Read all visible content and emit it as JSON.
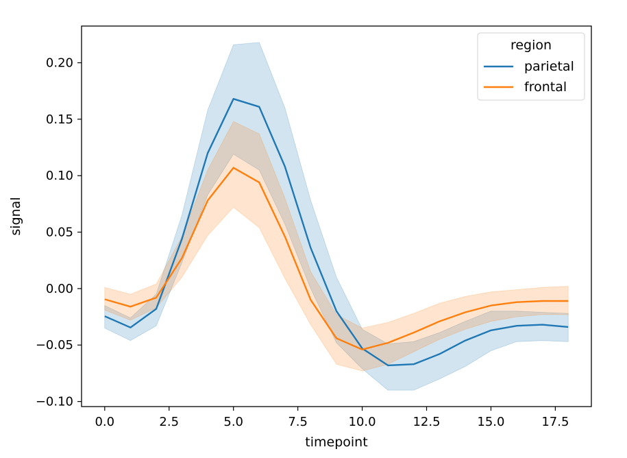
{
  "chart_data": {
    "type": "line",
    "title": "",
    "xlabel": "timepoint",
    "ylabel": "signal",
    "xlim": [
      -0.9,
      18.9
    ],
    "ylim": [
      -0.1045,
      0.2325
    ],
    "xticks": [
      0.0,
      2.5,
      5.0,
      7.5,
      10.0,
      12.5,
      15.0,
      17.5
    ],
    "xtick_labels": [
      "0.0",
      "2.5",
      "5.0",
      "7.5",
      "10.0",
      "12.5",
      "15.0",
      "17.5"
    ],
    "yticks": [
      -0.1,
      -0.05,
      0.0,
      0.05,
      0.1,
      0.15,
      0.2
    ],
    "ytick_labels": [
      "−0.10",
      "−0.05",
      "0.00",
      "0.05",
      "0.10",
      "0.15",
      "0.20"
    ],
    "grid": false,
    "legend": {
      "title": "region",
      "position": "top-right"
    },
    "x": [
      0,
      1,
      2,
      3,
      4,
      5,
      6,
      7,
      8,
      9,
      10,
      11,
      12,
      13,
      14,
      15,
      16,
      17,
      18
    ],
    "series": [
      {
        "name": "parietal",
        "color": "#1f77b4",
        "band_color": "#1f77b4",
        "values": [
          -0.0245,
          -0.0345,
          -0.018,
          0.044,
          0.12,
          0.168,
          0.161,
          0.108,
          0.036,
          -0.02,
          -0.053,
          -0.068,
          -0.067,
          -0.058,
          -0.046,
          -0.037,
          -0.033,
          -0.032,
          -0.034
        ],
        "lower": [
          -0.035,
          -0.046,
          -0.033,
          0.023,
          0.083,
          0.119,
          0.105,
          0.057,
          0.0,
          -0.048,
          -0.071,
          -0.09,
          -0.09,
          -0.08,
          -0.069,
          -0.055,
          -0.047,
          -0.046,
          -0.047
        ],
        "upper": [
          -0.015,
          -0.026,
          -0.005,
          0.065,
          0.158,
          0.216,
          0.218,
          0.16,
          0.078,
          0.01,
          -0.036,
          -0.049,
          -0.047,
          -0.039,
          -0.029,
          -0.02,
          -0.02,
          -0.021,
          -0.022
        ]
      },
      {
        "name": "frontal",
        "color": "#ff7f0e",
        "band_color": "#ff7f0e",
        "values": [
          -0.0095,
          -0.016,
          -0.008,
          0.027,
          0.078,
          0.107,
          0.094,
          0.046,
          -0.01,
          -0.044,
          -0.054,
          -0.048,
          -0.039,
          -0.029,
          -0.021,
          -0.015,
          -0.012,
          -0.011,
          -0.011
        ],
        "lower": [
          -0.019,
          -0.028,
          -0.017,
          0.01,
          0.047,
          0.072,
          0.054,
          0.009,
          -0.032,
          -0.067,
          -0.073,
          -0.067,
          -0.056,
          -0.045,
          -0.036,
          -0.029,
          -0.025,
          -0.023,
          -0.023
        ],
        "upper": [
          0.001,
          -0.005,
          0.004,
          0.046,
          0.105,
          0.148,
          0.137,
          0.08,
          0.015,
          -0.023,
          -0.035,
          -0.03,
          -0.022,
          -0.013,
          -0.007,
          -0.003,
          -0.001,
          0.001,
          0.002
        ]
      }
    ]
  }
}
